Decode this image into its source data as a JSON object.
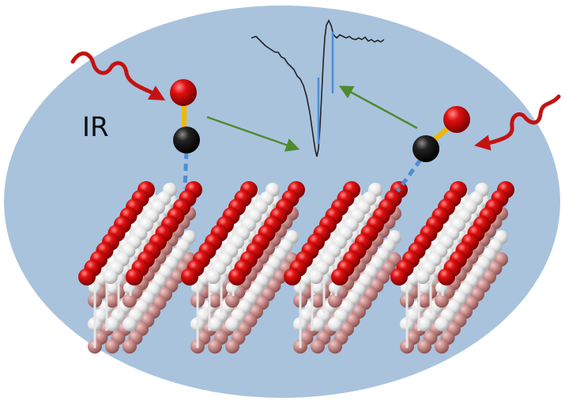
{
  "labels": {
    "ir": "IR"
  },
  "colors": {
    "background_ellipse": "#a9c3dd",
    "oxygen_atom": "#c80000",
    "carbon_atom": "#111111",
    "surface_oxygen": "#d60000",
    "lattice_white": "#f2f2f2",
    "lattice_pink": "#c58a88",
    "ir_wave": "#c41212",
    "pointer_arrow": "#4e8a2e",
    "adsorption_bond": "#4f8fd0",
    "co_bond": "#f0b800",
    "spectrum_line": "#222222",
    "spectrum_peak_marker": "#4b8fd6"
  },
  "icons": {
    "incoming_radiation": "wavy-arrow-icon",
    "adsorbed_molecule": "co-molecule-icon"
  }
}
